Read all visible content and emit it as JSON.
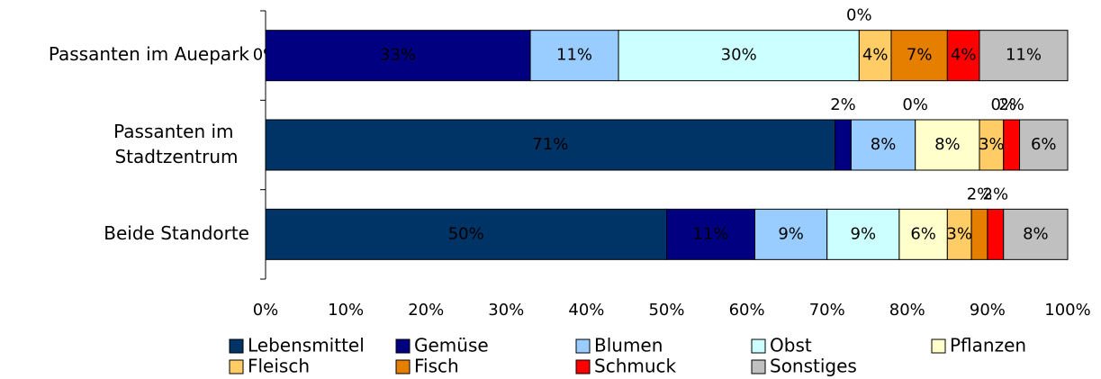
{
  "chart_data": {
    "type": "stacked_barh",
    "categories": [
      "Passanten im Auepark",
      "Passanten im Stadtzentrum",
      "Beide Standorte"
    ],
    "series": [
      {
        "name": "Lebensmittel",
        "color": "#003366",
        "values": [
          0,
          71,
          50
        ],
        "value_labels": [
          "0%",
          "71%",
          "50%"
        ]
      },
      {
        "name": "Gemüse",
        "color": "#000080",
        "values": [
          33,
          2,
          11
        ],
        "value_labels": [
          "33%",
          "2%",
          "11%"
        ]
      },
      {
        "name": "Blumen",
        "color": "#99ccff",
        "values": [
          11,
          8,
          9
        ],
        "value_labels": [
          "11%",
          "8%",
          "9%"
        ]
      },
      {
        "name": "Obst",
        "color": "#ccffff",
        "values": [
          30,
          0,
          9
        ],
        "value_labels": [
          "30%",
          "0%",
          "9%"
        ]
      },
      {
        "name": "Pflanzen",
        "color": "#ffffcc",
        "values": [
          0,
          8,
          6
        ],
        "value_labels": [
          "0%",
          "8%",
          "6%"
        ]
      },
      {
        "name": "Fleisch",
        "color": "#ffcc66",
        "values": [
          4,
          3,
          3
        ],
        "value_labels": [
          "4%",
          "3%",
          "3%"
        ]
      },
      {
        "name": "Fisch",
        "color": "#e67e00",
        "values": [
          7,
          0,
          2
        ],
        "value_labels": [
          "7%",
          "0%",
          "2%"
        ]
      },
      {
        "name": "Schmuck",
        "color": "#ff0000",
        "values": [
          4,
          2,
          2
        ],
        "value_labels": [
          "4%",
          "2%",
          "2%"
        ]
      },
      {
        "name": "Sonstiges",
        "color": "#c0c0c0",
        "values": [
          11,
          6,
          8
        ],
        "value_labels": [
          "11%",
          "6%",
          "8%"
        ]
      }
    ],
    "xlim": [
      0,
      100
    ],
    "xticks": [
      {
        "value": 0,
        "label": "0%"
      },
      {
        "value": 10,
        "label": "10%"
      },
      {
        "value": 20,
        "label": "20%"
      },
      {
        "value": 30,
        "label": "30%"
      },
      {
        "value": 40,
        "label": "40%"
      },
      {
        "value": 50,
        "label": "50%"
      },
      {
        "value": 60,
        "label": "60%"
      },
      {
        "value": 70,
        "label": "70%"
      },
      {
        "value": 80,
        "label": "80%"
      },
      {
        "value": 90,
        "label": "90%"
      },
      {
        "value": 100,
        "label": "100%"
      }
    ],
    "legend": "bottom"
  }
}
